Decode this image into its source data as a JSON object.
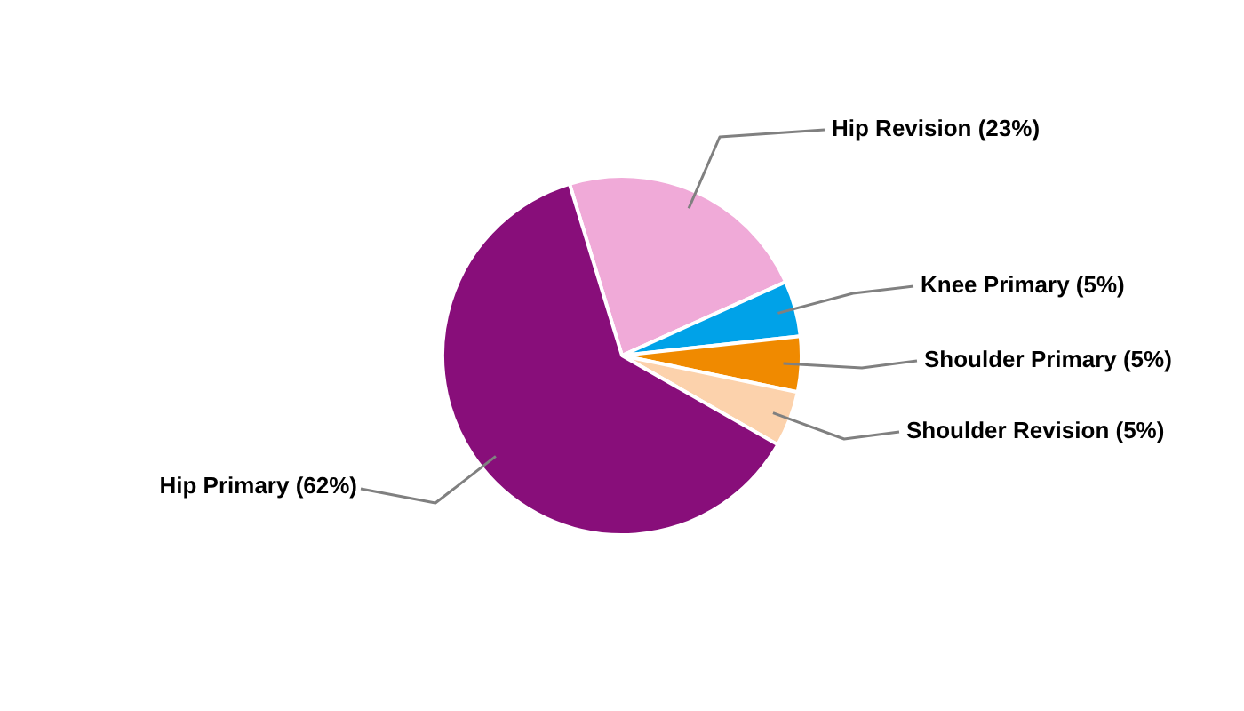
{
  "chart_data": {
    "type": "pie",
    "categories": [
      "Hip Revision",
      "Knee Primary",
      "Shoulder Primary",
      "Shoulder Revision",
      "Hip Primary"
    ],
    "values": [
      23,
      5,
      5,
      5,
      62
    ],
    "colors": [
      "#f0aad8",
      "#00a2e8",
      "#f08a00",
      "#fcd2ac",
      "#880e7a"
    ],
    "value_labels": [
      "(23%)",
      "(5%)",
      "(5%)",
      "(5%)",
      "(62%)"
    ],
    "legend": false
  }
}
